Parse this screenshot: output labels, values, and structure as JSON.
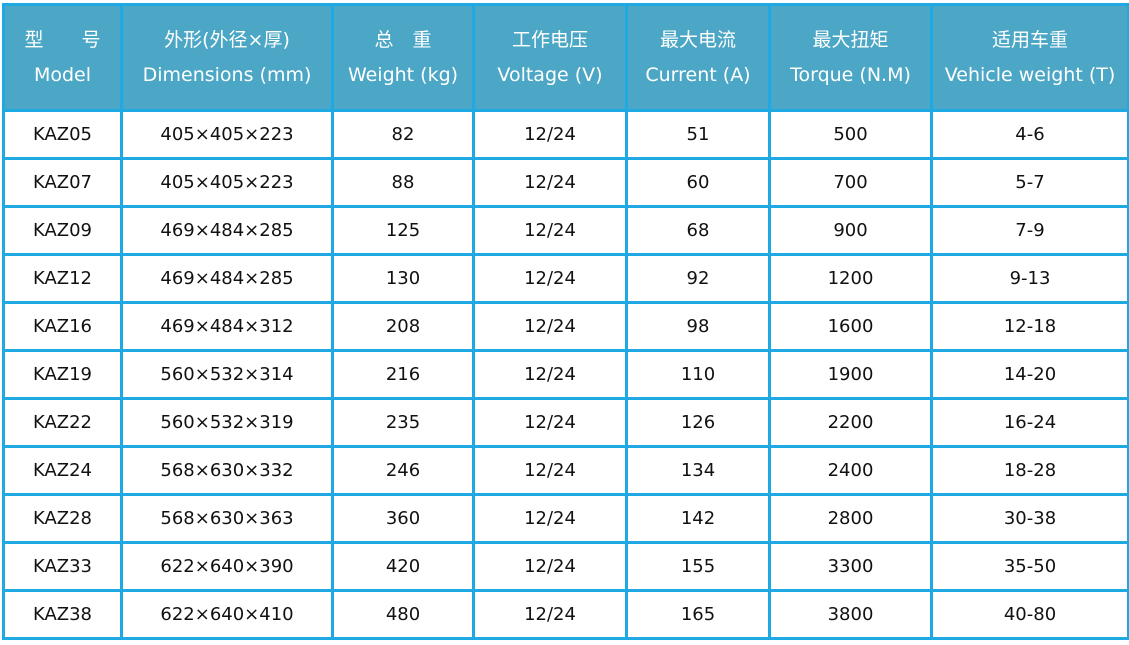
{
  "table": {
    "headers": [
      {
        "zh": "型　　号",
        "en": "Model"
      },
      {
        "zh": "外形(外径×厚)",
        "en": "Dimensions (mm)"
      },
      {
        "zh": "总　重",
        "en": "Weight (kg)"
      },
      {
        "zh": "工作电压",
        "en": "Voltage (V)"
      },
      {
        "zh": "最大电流",
        "en": "Current (A)"
      },
      {
        "zh": "最大扭矩",
        "en": "Torque (N.M)"
      },
      {
        "zh": "适用车重",
        "en": "Vehicle weight (T)"
      }
    ],
    "rows": [
      [
        "KAZ05",
        "405×405×223",
        "82",
        "12/24",
        "51",
        "500",
        "4-6"
      ],
      [
        "KAZ07",
        "405×405×223",
        "88",
        "12/24",
        "60",
        "700",
        "5-7"
      ],
      [
        "KAZ09",
        "469×484×285",
        "125",
        "12/24",
        "68",
        "900",
        "7-9"
      ],
      [
        "KAZ12",
        "469×484×285",
        "130",
        "12/24",
        "92",
        "1200",
        "9-13"
      ],
      [
        "KAZ16",
        "469×484×312",
        "208",
        "12/24",
        "98",
        "1600",
        "12-18"
      ],
      [
        "KAZ19",
        "560×532×314",
        "216",
        "12/24",
        "110",
        "1900",
        "14-20"
      ],
      [
        "KAZ22",
        "560×532×319",
        "235",
        "12/24",
        "126",
        "2200",
        "16-24"
      ],
      [
        "KAZ24",
        "568×630×332",
        "246",
        "12/24",
        "134",
        "2400",
        "18-28"
      ],
      [
        "KAZ28",
        "568×630×363",
        "360",
        "12/24",
        "142",
        "2800",
        "30-38"
      ],
      [
        "KAZ33",
        "622×640×390",
        "420",
        "12/24",
        "155",
        "3300",
        "35-50"
      ],
      [
        "KAZ38",
        "622×640×410",
        "480",
        "12/24",
        "165",
        "3800",
        "40-80"
      ]
    ]
  },
  "colors": {
    "header_bg": "#4ba7c5",
    "border": "#1fa9e3"
  }
}
